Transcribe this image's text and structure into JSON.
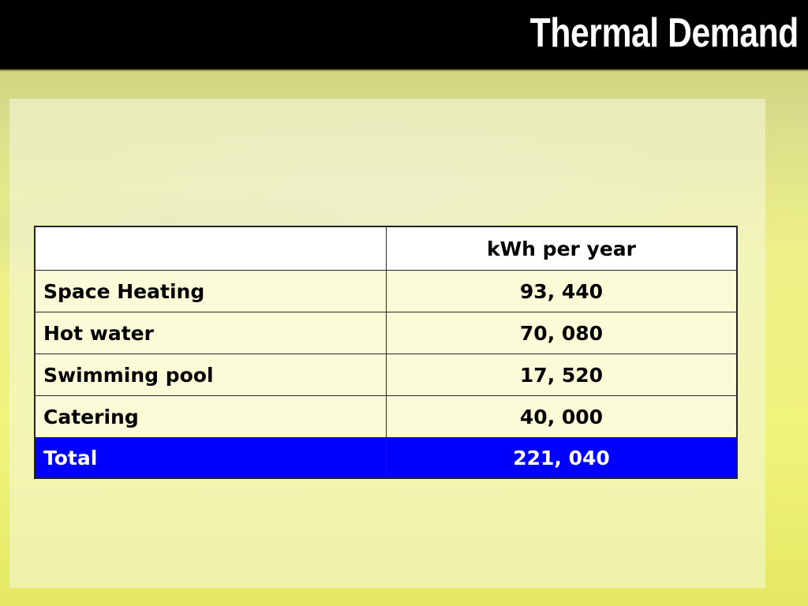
{
  "slide": {
    "title": "Thermal Demand"
  },
  "table": {
    "header": [
      "",
      "kWh per year"
    ],
    "rows": [
      {
        "label": "Space Heating",
        "value": "93, 440"
      },
      {
        "label": "Hot water",
        "value": "70, 080"
      },
      {
        "label": "Swimming pool",
        "value": "17, 520"
      },
      {
        "label": "Catering",
        "value": "40, 000"
      }
    ],
    "total": {
      "label": "Total",
      "value": "221, 040"
    }
  },
  "colors": {
    "title_bar": "#000000",
    "title_text": "#ffffff",
    "total_row": "#0000ff",
    "background": "#e9ec74"
  }
}
